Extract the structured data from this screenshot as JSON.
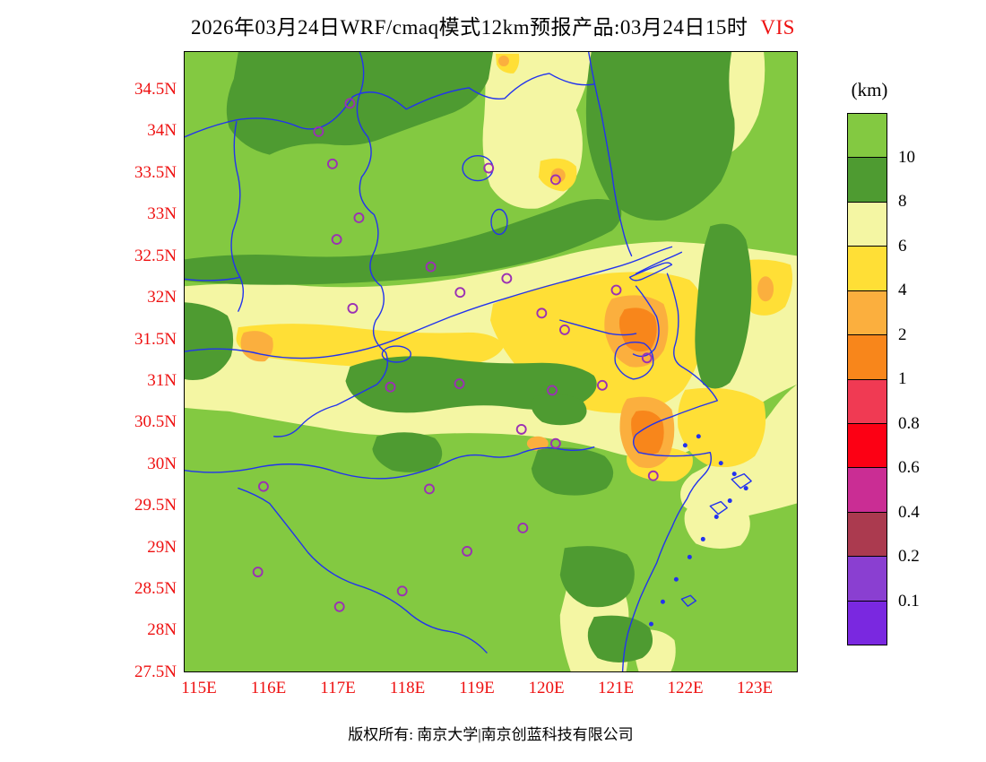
{
  "title": {
    "text": "2026年03月24日WRF/cmaq模式12km预报产品:03月24日15时",
    "variable": "VIS"
  },
  "footer": {
    "copyright": "版权所有: 南京大学|南京创蓝科技有限公司"
  },
  "colors": {
    "title_text": "#000000",
    "variable_text": "#ee1111",
    "axis_labels": "#ee1111",
    "boundaries": "#2233ee",
    "stations": "#9b30b4",
    "map_frame": "#000000"
  },
  "chart_data": {
    "type": "heatmap",
    "variable": "VIS",
    "unit_label": "(km)",
    "lat_ticks": [
      "34.5N",
      "34N",
      "33.5N",
      "33N",
      "32.5N",
      "32N",
      "31.5N",
      "31N",
      "30.5N",
      "30N",
      "29.5N",
      "29N",
      "28.5N",
      "28N",
      "27.5N"
    ],
    "lon_ticks": [
      "115E",
      "116E",
      "117E",
      "118E",
      "119E",
      "120E",
      "121E",
      "122E",
      "123E"
    ],
    "lon_range": [
      114.78,
      123.56
    ],
    "lat_range": [
      27.5,
      34.97
    ],
    "grid": false,
    "legend_position": "right",
    "colorbar": {
      "labels": [
        "10",
        "8",
        "6",
        "4",
        "2",
        "1",
        "0.8",
        "0.6",
        "0.4",
        "0.2",
        "0.1"
      ],
      "levels_km": [
        10,
        8,
        6,
        4,
        2,
        1,
        0.8,
        0.6,
        0.4,
        0.2,
        0.1
      ],
      "colors": [
        "#83c941",
        "#4e9b31",
        "#f4f6a3",
        "#ffdf36",
        "#fbaf3e",
        "#f8861b",
        "#f03a53",
        "#fc0014",
        "#ca2d94",
        "#ab3a4f",
        "#8a3fd1",
        "#7a28e0"
      ]
    },
    "field_summary": "Visibility 8 to >10 km (greens) over most of the domain; a broad 4-8 km band (yellows) along the Yangtze valley ~31N-32.5N widening toward the coast and down the Zhejiang shoreline; 1-4 km pockets (orange) near 121E/31.5N, 121E/30.7N and 116.2E/31.6N; no values below 1 km anywhere.",
    "stations_lonlat": [
      [
        117.15,
        34.35
      ],
      [
        116.7,
        34.01
      ],
      [
        116.9,
        33.62
      ],
      [
        119.14,
        33.57
      ],
      [
        120.1,
        33.43
      ],
      [
        117.28,
        32.97
      ],
      [
        116.96,
        32.71
      ],
      [
        118.31,
        32.38
      ],
      [
        119.4,
        32.24
      ],
      [
        118.73,
        32.07
      ],
      [
        120.97,
        32.1
      ],
      [
        117.19,
        31.88
      ],
      [
        119.9,
        31.82
      ],
      [
        120.23,
        31.62
      ],
      [
        121.41,
        31.28
      ],
      [
        117.73,
        30.93
      ],
      [
        118.72,
        30.97
      ],
      [
        120.05,
        30.89
      ],
      [
        120.77,
        30.95
      ],
      [
        119.61,
        30.42
      ],
      [
        120.1,
        30.25
      ],
      [
        121.5,
        29.86
      ],
      [
        115.91,
        29.73
      ],
      [
        118.29,
        29.7
      ],
      [
        119.63,
        29.23
      ],
      [
        118.83,
        28.95
      ],
      [
        115.83,
        28.7
      ],
      [
        117.9,
        28.47
      ],
      [
        117.0,
        28.28
      ]
    ]
  }
}
